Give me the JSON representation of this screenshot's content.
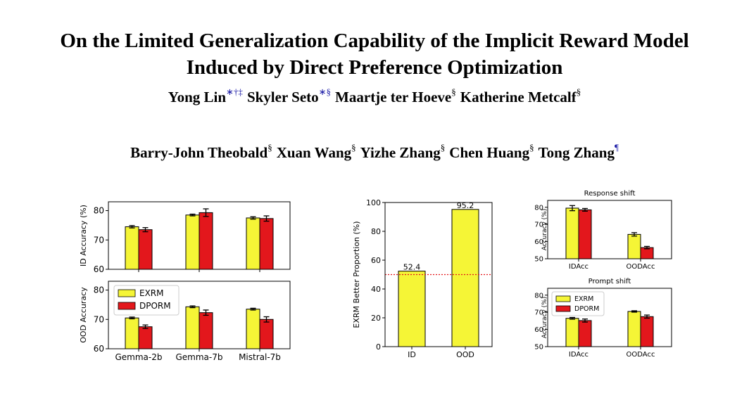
{
  "paper": {
    "title_line1": "On the Limited Generalization Capability of the Implicit Reward Model",
    "title_line2": "Induced by Direct Preference Optimization",
    "authors_line1": [
      {
        "name": "Yong Lin",
        "sup": "∗†‡",
        "sup_color": "#1a1aa6"
      },
      {
        "name": "Skyler Seto",
        "sup": "∗§",
        "sup_color": "#1a1aa6"
      },
      {
        "name": "Maartje ter Hoeve",
        "sup": "§",
        "sup_color": "#000000"
      },
      {
        "name": "Katherine Metcalf",
        "sup": "§",
        "sup_color": "#000000"
      }
    ],
    "authors_line2": [
      {
        "name": "Barry-John Theobald",
        "sup": "§",
        "sup_color": "#000000"
      },
      {
        "name": "Xuan Wang",
        "sup": "§",
        "sup_color": "#000000"
      },
      {
        "name": "Yizhe Zhang",
        "sup": "§",
        "sup_color": "#000000"
      },
      {
        "name": "Chen Huang",
        "sup": "§",
        "sup_color": "#000000"
      },
      {
        "name": "Tong Zhang",
        "sup": "¶",
        "sup_color": "#1a1aa6"
      }
    ]
  },
  "colors": {
    "exrm": "#f5f536",
    "dporm": "#e3171c",
    "ref_line": "#e3171c"
  },
  "chart_data": [
    {
      "id": "id_acc",
      "type": "bar",
      "title": "",
      "ylabel": "ID Accuracy (%)",
      "categories": [
        "Gemma-2b",
        "Gemma-7b",
        "Mistral-7b"
      ],
      "show_xticks": false,
      "ylim": [
        60,
        83
      ],
      "yticks": [
        60,
        70,
        80
      ],
      "series": [
        {
          "name": "EXRM",
          "values": [
            74.5,
            78.5,
            77.5
          ],
          "errors": [
            0.4,
            0.3,
            0.4
          ]
        },
        {
          "name": "DPORM",
          "values": [
            73.5,
            79.3,
            77.3
          ],
          "errors": [
            0.7,
            1.3,
            0.9
          ]
        }
      ]
    },
    {
      "id": "ood_acc",
      "type": "bar",
      "title": "",
      "ylabel": "OOD Accuracy",
      "categories": [
        "Gemma-2b",
        "Gemma-7b",
        "Mistral-7b"
      ],
      "show_xticks": true,
      "ylim": [
        60,
        83
      ],
      "yticks": [
        60,
        70,
        80
      ],
      "legend": [
        "EXRM",
        "DPORM"
      ],
      "series": [
        {
          "name": "EXRM",
          "values": [
            70.5,
            74.3,
            73.5
          ],
          "errors": [
            0.3,
            0.3,
            0.3
          ]
        },
        {
          "name": "DPORM",
          "values": [
            67.5,
            72.3,
            70.0
          ],
          "errors": [
            0.6,
            0.9,
            0.9
          ]
        }
      ]
    },
    {
      "id": "better_prop",
      "type": "bar",
      "title": "",
      "ylabel": "EXRM Better Proportion (%)",
      "categories": [
        "ID",
        "OOD"
      ],
      "show_xticks": true,
      "ylim": [
        0,
        100
      ],
      "yticks": [
        0,
        20,
        40,
        60,
        80,
        100
      ],
      "reference_line": 50,
      "series": [
        {
          "name": "EXRM",
          "values": [
            52.4,
            95.2
          ],
          "labels": [
            "52.4",
            "95.2"
          ]
        }
      ]
    },
    {
      "id": "response_shift",
      "type": "bar",
      "title": "Response shift",
      "ylabel": "Accuracy (%)",
      "categories": [
        "IDAcc",
        "OODAcc"
      ],
      "show_xticks": true,
      "ylim": [
        50,
        84
      ],
      "yticks": [
        50,
        60,
        70,
        80
      ],
      "series": [
        {
          "name": "EXRM",
          "values": [
            79.5,
            64.2
          ],
          "errors": [
            1.5,
            1.0
          ]
        },
        {
          "name": "DPORM",
          "values": [
            78.5,
            56.5
          ],
          "errors": [
            0.8,
            0.7
          ]
        }
      ]
    },
    {
      "id": "prompt_shift",
      "type": "bar",
      "title": "Prompt shift",
      "ylabel": "Accuracy (%)",
      "categories": [
        "IDAcc",
        "OODAcc"
      ],
      "show_xticks": true,
      "ylim": [
        50,
        84
      ],
      "yticks": [
        50,
        60,
        70,
        80
      ],
      "legend": [
        "EXRM",
        "DPORM"
      ],
      "series": [
        {
          "name": "EXRM",
          "values": [
            66.5,
            70.5
          ],
          "errors": [
            0.5,
            0.4
          ]
        },
        {
          "name": "DPORM",
          "values": [
            65.2,
            67.5
          ],
          "errors": [
            0.9,
            0.9
          ]
        }
      ]
    }
  ]
}
